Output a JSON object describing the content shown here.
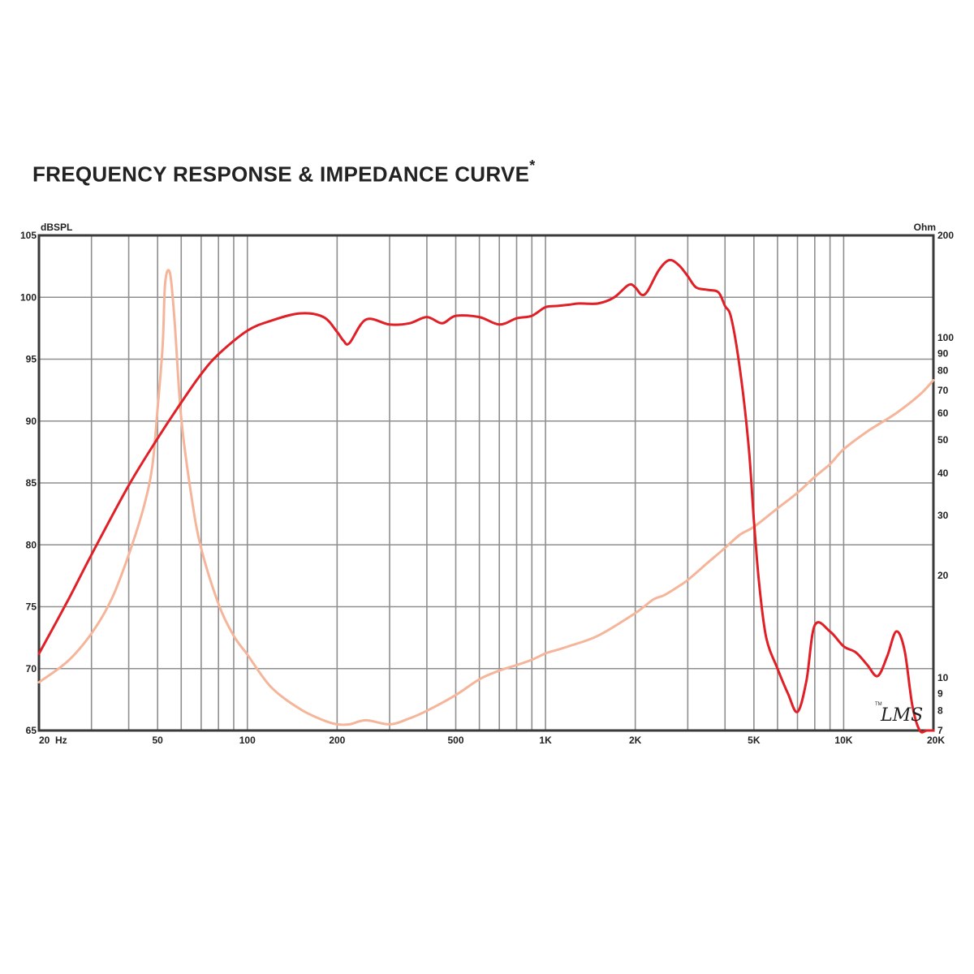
{
  "chart_data": {
    "type": "line",
    "title": "FREQUENCY RESPONSE & IMPEDANCE CURVE",
    "title_mark": "*",
    "xscale": "log",
    "xlim": [
      20,
      20000
    ],
    "x_tick_labels": [
      {
        "v": 20,
        "t": "20  Hz"
      },
      {
        "v": 50,
        "t": "50"
      },
      {
        "v": 100,
        "t": "100"
      },
      {
        "v": 200,
        "t": "200"
      },
      {
        "v": 500,
        "t": "500"
      },
      {
        "v": 1000,
        "t": "1K"
      },
      {
        "v": 2000,
        "t": "2K"
      },
      {
        "v": 5000,
        "t": "5K"
      },
      {
        "v": 10000,
        "t": "10K"
      },
      {
        "v": 20000,
        "t": "20K"
      }
    ],
    "ylabel": "dBSPL",
    "ylim": [
      65,
      105
    ],
    "y_ticks": [
      65,
      70,
      75,
      80,
      85,
      90,
      95,
      100,
      105
    ],
    "y2label": "Ohm",
    "y2scale": "log",
    "y2lim": [
      7,
      200
    ],
    "y2_ticks": [
      7,
      8,
      9,
      10,
      20,
      30,
      40,
      50,
      60,
      70,
      80,
      90,
      100,
      200
    ],
    "grid": true,
    "watermark": "LMS",
    "watermark_small": "TM",
    "series": [
      {
        "axis": "left",
        "color": "#e01f26",
        "x": [
          20,
          25,
          30,
          40,
          50,
          60,
          70,
          80,
          100,
          120,
          150,
          180,
          200,
          210,
          220,
          250,
          300,
          350,
          400,
          450,
          500,
          600,
          700,
          800,
          900,
          1000,
          1100,
          1200,
          1300,
          1500,
          1700,
          1900,
          2000,
          2100,
          2200,
          2400,
          2600,
          2800,
          3000,
          3200,
          3500,
          3800,
          4000,
          4200,
          4500,
          4800,
          5000,
          5200,
          5500,
          6000,
          6500,
          7000,
          7500,
          8000,
          9000,
          10000,
          11000,
          12000,
          13000,
          14000,
          15000,
          16000,
          17000,
          18000,
          19000,
          20000
        ],
        "y": [
          71.2,
          75.5,
          79.2,
          84.8,
          88.6,
          91.5,
          93.8,
          95.4,
          97.3,
          98.1,
          98.7,
          98.4,
          97.2,
          96.5,
          96.3,
          98.2,
          97.8,
          97.9,
          98.4,
          97.9,
          98.5,
          98.4,
          97.8,
          98.3,
          98.5,
          99.2,
          99.3,
          99.4,
          99.5,
          99.5,
          100.0,
          101.0,
          100.8,
          100.2,
          100.5,
          102.2,
          103.0,
          102.6,
          101.7,
          100.8,
          100.6,
          100.4,
          99.3,
          98.3,
          94.0,
          88.0,
          82.0,
          77.0,
          72.5,
          70.0,
          68.0,
          66.5,
          69.0,
          73.5,
          73.0,
          71.8,
          71.3,
          70.3,
          69.4,
          71.0,
          73.0,
          71.5,
          67.0,
          65.0,
          65.0,
          65.0
        ]
      },
      {
        "axis": "right",
        "color": "#f5b59a",
        "x": [
          20,
          25,
          30,
          35,
          40,
          45,
          48,
          50,
          52,
          53,
          55,
          57,
          60,
          65,
          70,
          80,
          90,
          100,
          120,
          150,
          180,
          200,
          220,
          250,
          300,
          350,
          400,
          500,
          600,
          700,
          800,
          900,
          1000,
          1100,
          1200,
          1500,
          2000,
          2300,
          2500,
          2800,
          3000,
          3500,
          4000,
          4500,
          5000,
          6000,
          7000,
          8000,
          9000,
          10000,
          12000,
          15000,
          18000,
          20000
        ],
        "y": [
          9.7,
          11.2,
          13.5,
          17.0,
          23.0,
          32.0,
          42.0,
          62.0,
          95.0,
          145.0,
          155.0,
          112.0,
          58.0,
          34.0,
          24.0,
          16.5,
          13.3,
          11.7,
          9.4,
          8.1,
          7.5,
          7.3,
          7.3,
          7.5,
          7.3,
          7.6,
          8.0,
          8.9,
          9.9,
          10.5,
          10.9,
          11.3,
          11.8,
          12.1,
          12.4,
          13.3,
          15.5,
          17.0,
          17.5,
          18.6,
          19.4,
          21.8,
          24.1,
          26.4,
          27.8,
          31.5,
          35.0,
          39.0,
          42.5,
          47.0,
          53.0,
          60.0,
          68.0,
          75.0
        ]
      }
    ]
  }
}
